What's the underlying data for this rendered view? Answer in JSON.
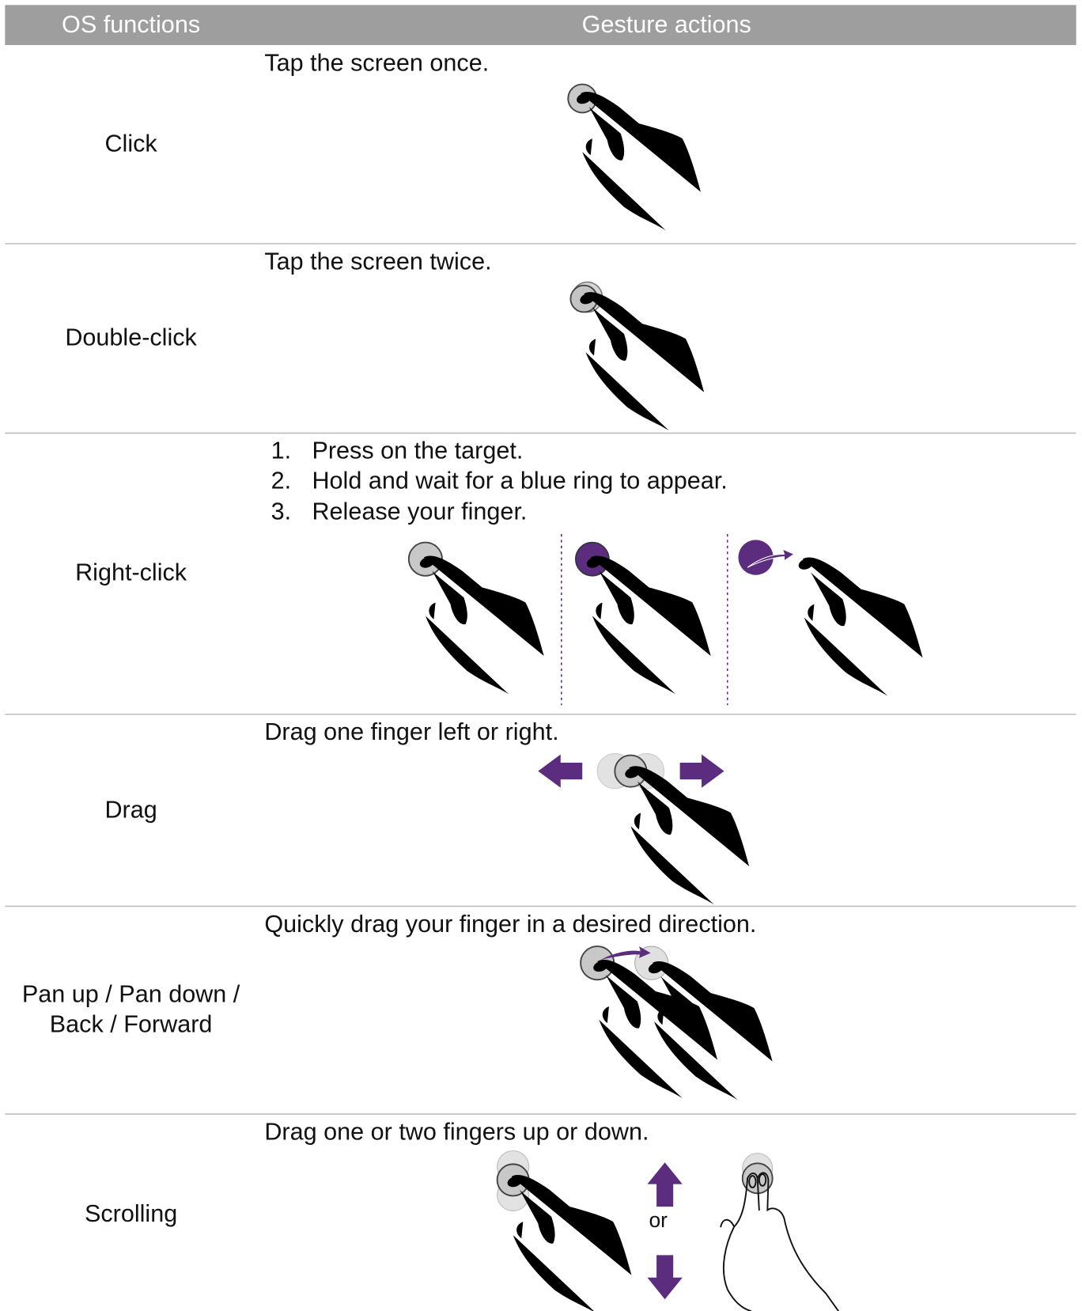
{
  "header": {
    "columns": [
      "OS functions",
      "Gesture actions"
    ]
  },
  "rows": [
    {
      "function": "Click",
      "action": "Tap the screen once."
    },
    {
      "function": "Double-click",
      "action": "Tap the screen twice."
    },
    {
      "function": "Right-click",
      "steps": [
        {
          "number": "1.",
          "text": "Press on the target."
        },
        {
          "number": "2.",
          "text": "Hold and wait for a blue ring to appear."
        },
        {
          "number": "3.",
          "text": "Release your finger."
        }
      ]
    },
    {
      "function": "Drag",
      "action": "Drag one finger left or right."
    },
    {
      "function": [
        "Pan up / Pan down /",
        "Back / Forward"
      ],
      "action": "Quickly drag your finger in a desired direction."
    },
    {
      "function": "Scrolling",
      "action": "Drag one or two fingers up or down.",
      "note": "or"
    }
  ]
}
